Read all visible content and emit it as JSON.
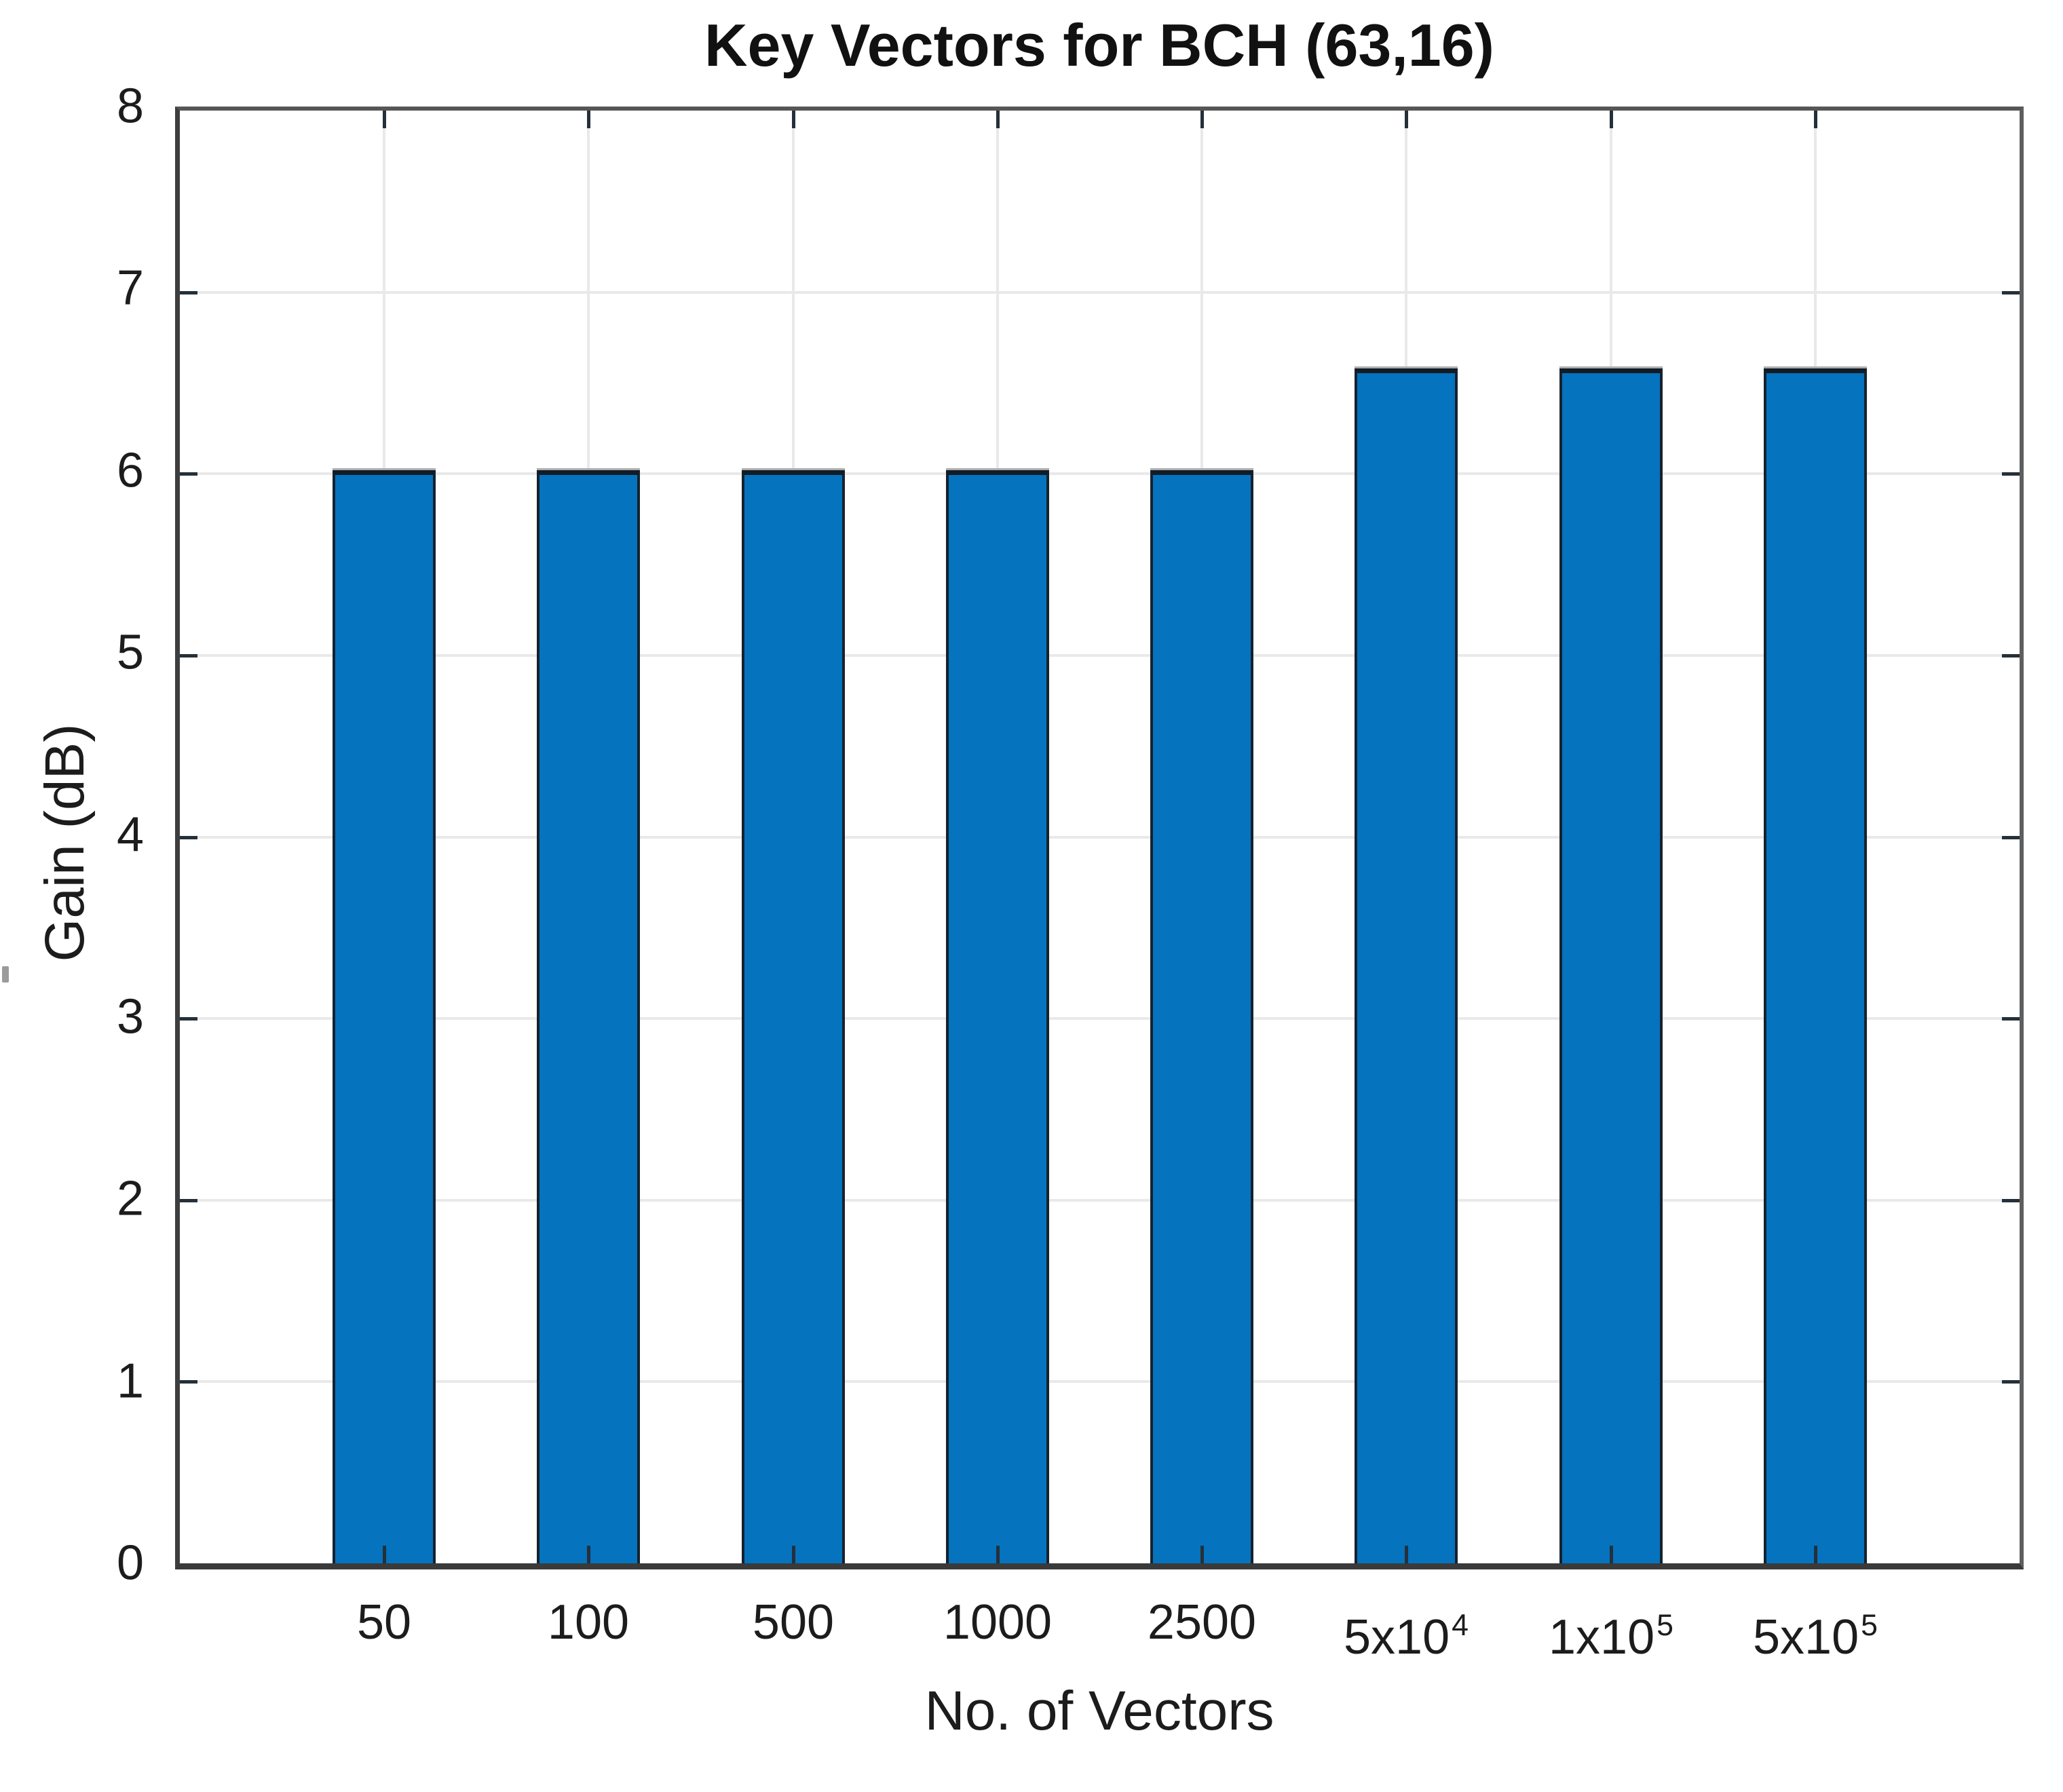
{
  "figure": {
    "background": "#ffffff"
  },
  "chart_data": {
    "type": "bar",
    "title": "Key Vectors for BCH (63,16)",
    "xlabel": "No. of Vectors",
    "ylabel": "Gain (dB)",
    "categories": [
      {
        "label": "50",
        "superscript": null
      },
      {
        "label": "100",
        "superscript": null
      },
      {
        "label": "500",
        "superscript": null
      },
      {
        "label": "1000",
        "superscript": null
      },
      {
        "label": "2500",
        "superscript": null
      },
      {
        "label": "5x10",
        "superscript": "4"
      },
      {
        "label": "1x10",
        "superscript": "5"
      },
      {
        "label": "5x10",
        "superscript": "5"
      }
    ],
    "values": [
      6.02,
      6.02,
      6.02,
      6.02,
      6.02,
      6.58,
      6.58,
      6.58
    ],
    "ylim": [
      0,
      8
    ],
    "yticks": [
      0,
      1,
      2,
      3,
      4,
      5,
      6,
      7,
      8
    ],
    "grid": true,
    "legend": null,
    "bar_color": "#0573BE",
    "bar_edge_color": "#16222e",
    "gridline_color": "#e9e9e9",
    "axis_color": "#3e3e3e",
    "text_color": "#1c1c1c"
  }
}
